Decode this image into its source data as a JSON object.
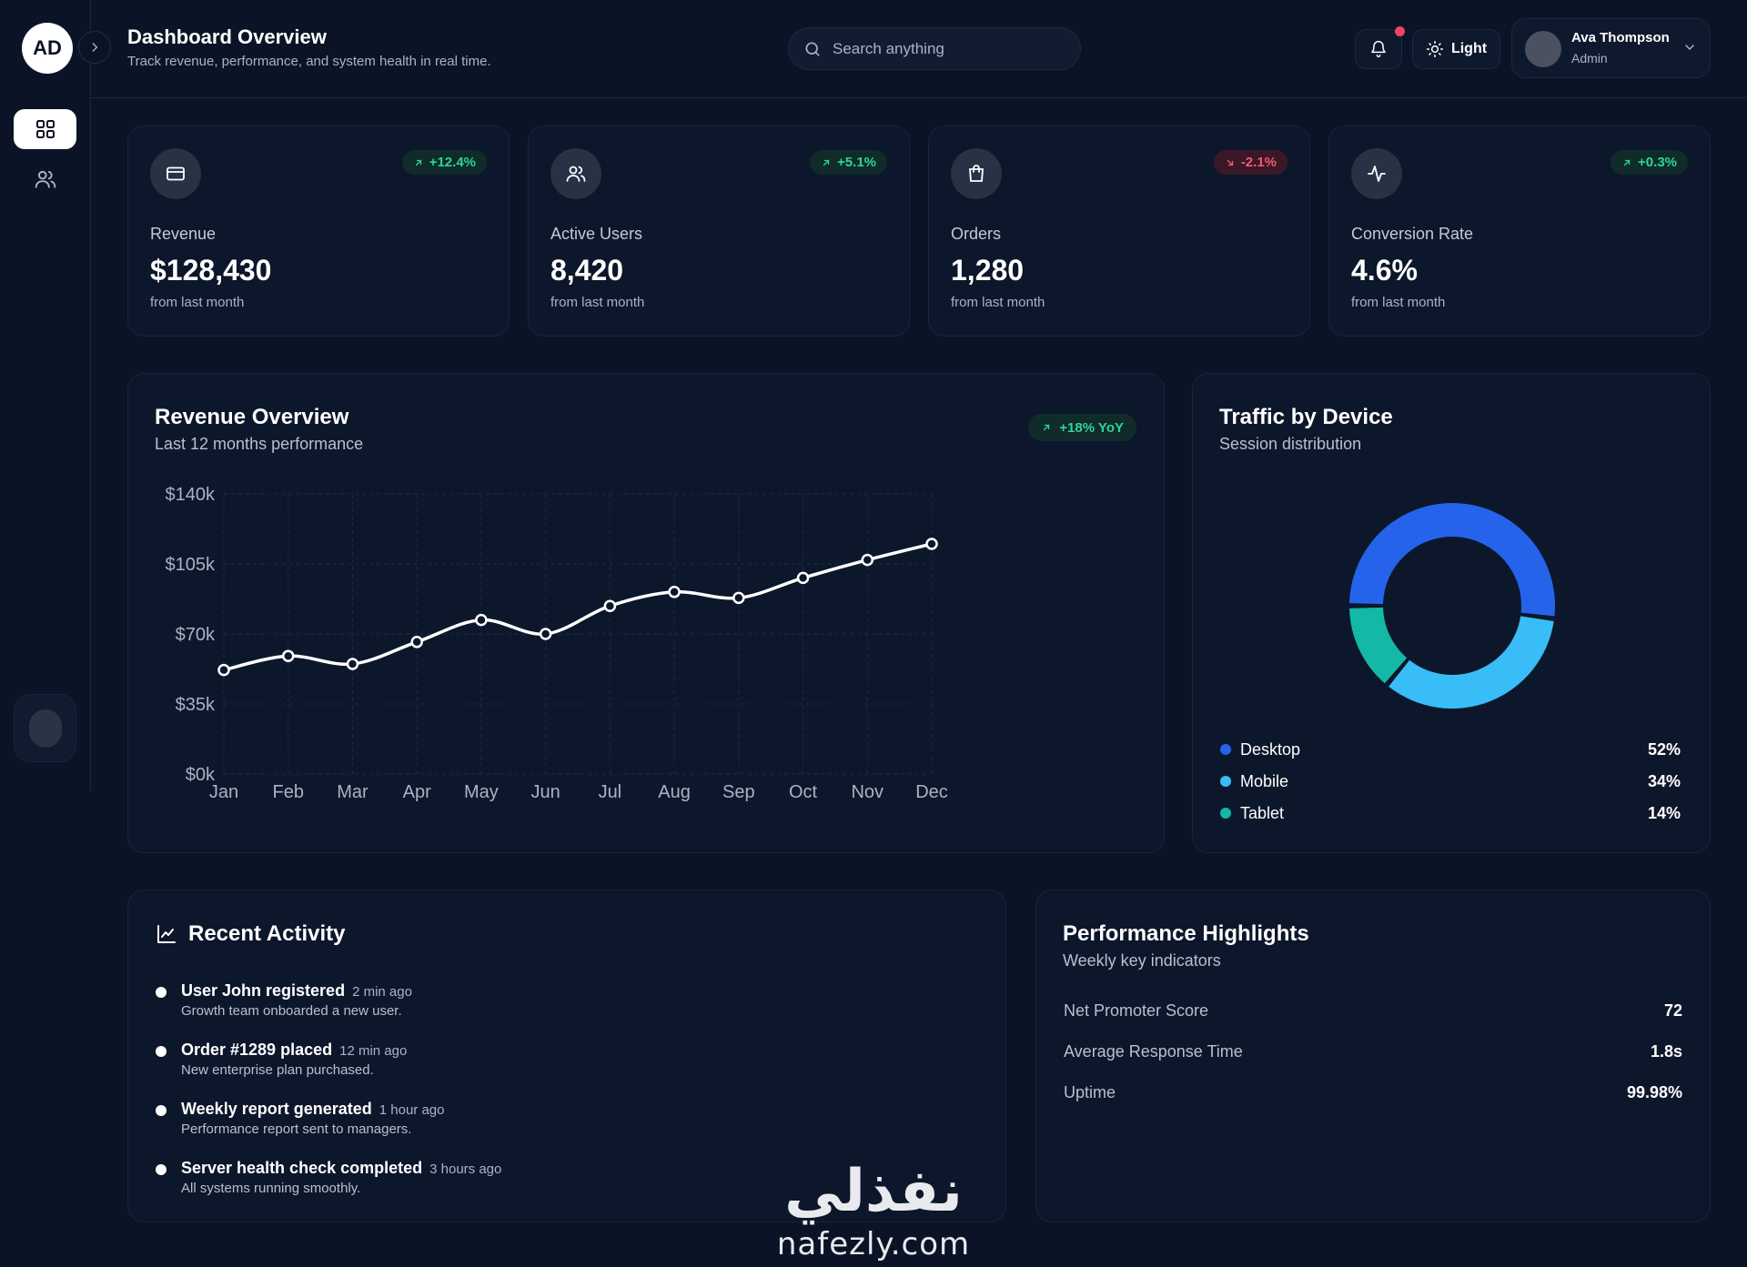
{
  "sidebar": {
    "logo": "AD",
    "items": [
      {
        "name": "dashboard",
        "icon": "grid-icon",
        "active": true
      },
      {
        "name": "users",
        "icon": "users-icon",
        "active": false
      }
    ]
  },
  "header": {
    "title": "Dashboard Overview",
    "subtitle": "Track revenue, performance, and system health in real time.",
    "search_placeholder": "Search anything",
    "theme_label": "Light",
    "user": {
      "name": "Ava Thompson",
      "role": "Admin"
    }
  },
  "stats": [
    {
      "label": "Revenue",
      "value": "$128,430",
      "change": "+12.4%",
      "trend": "up",
      "foot": "from last month",
      "icon": "credit-card-icon"
    },
    {
      "label": "Active Users",
      "value": "8,420",
      "change": "+5.1%",
      "trend": "up",
      "foot": "from last month",
      "icon": "users-icon"
    },
    {
      "label": "Orders",
      "value": "1,280",
      "change": "-2.1%",
      "trend": "down",
      "foot": "from last month",
      "icon": "shopping-bag-icon"
    },
    {
      "label": "Conversion Rate",
      "value": "4.6%",
      "change": "+0.3%",
      "trend": "up",
      "foot": "from last month",
      "icon": "activity-icon"
    }
  ],
  "revenue": {
    "title": "Revenue Overview",
    "subtitle": "Last 12 months performance",
    "badge": "+18% YoY"
  },
  "chart_data": {
    "type": "line",
    "categories": [
      "Jan",
      "Feb",
      "Mar",
      "Apr",
      "May",
      "Jun",
      "Jul",
      "Aug",
      "Sep",
      "Oct",
      "Nov",
      "Dec"
    ],
    "series": [
      {
        "values": [
          52000,
          59000,
          55000,
          66000,
          77000,
          70000,
          84000,
          91000,
          88000,
          98000,
          107000,
          115000
        ]
      }
    ],
    "y_ticks": [
      "$140k",
      "$105k",
      "$70k",
      "$35k",
      "$0k"
    ],
    "ylim": [
      0,
      140000
    ],
    "grid": true
  },
  "traffic": {
    "title": "Traffic by Device",
    "subtitle": "Session distribution",
    "chart_data": {
      "type": "pie",
      "donut": true,
      "slices": [
        {
          "label": "Desktop",
          "value": 52,
          "display": "52%",
          "color": "#2563eb"
        },
        {
          "label": "Mobile",
          "value": 34,
          "display": "34%",
          "color": "#38bdf8"
        },
        {
          "label": "Tablet",
          "value": 14,
          "display": "14%",
          "color": "#14b8a6"
        }
      ]
    }
  },
  "activity": {
    "title": "Recent Activity",
    "items": [
      {
        "title": "User John registered",
        "time": "2 min ago",
        "desc": "Growth team onboarded a new user."
      },
      {
        "title": "Order #1289 placed",
        "time": "12 min ago",
        "desc": "New enterprise plan purchased."
      },
      {
        "title": "Weekly report generated",
        "time": "1 hour ago",
        "desc": "Performance report sent to managers."
      },
      {
        "title": "Server health check completed",
        "time": "3 hours ago",
        "desc": "All systems running smoothly."
      }
    ]
  },
  "performance": {
    "title": "Performance Highlights",
    "subtitle": "Weekly key indicators",
    "rows": [
      {
        "label": "Net Promoter Score",
        "value": "72"
      },
      {
        "label": "Average Response Time",
        "value": "1.8s"
      },
      {
        "label": "Uptime",
        "value": "99.98%"
      }
    ]
  },
  "watermark": {
    "arabic": "نفذلي",
    "latin": "nafezly.com"
  }
}
